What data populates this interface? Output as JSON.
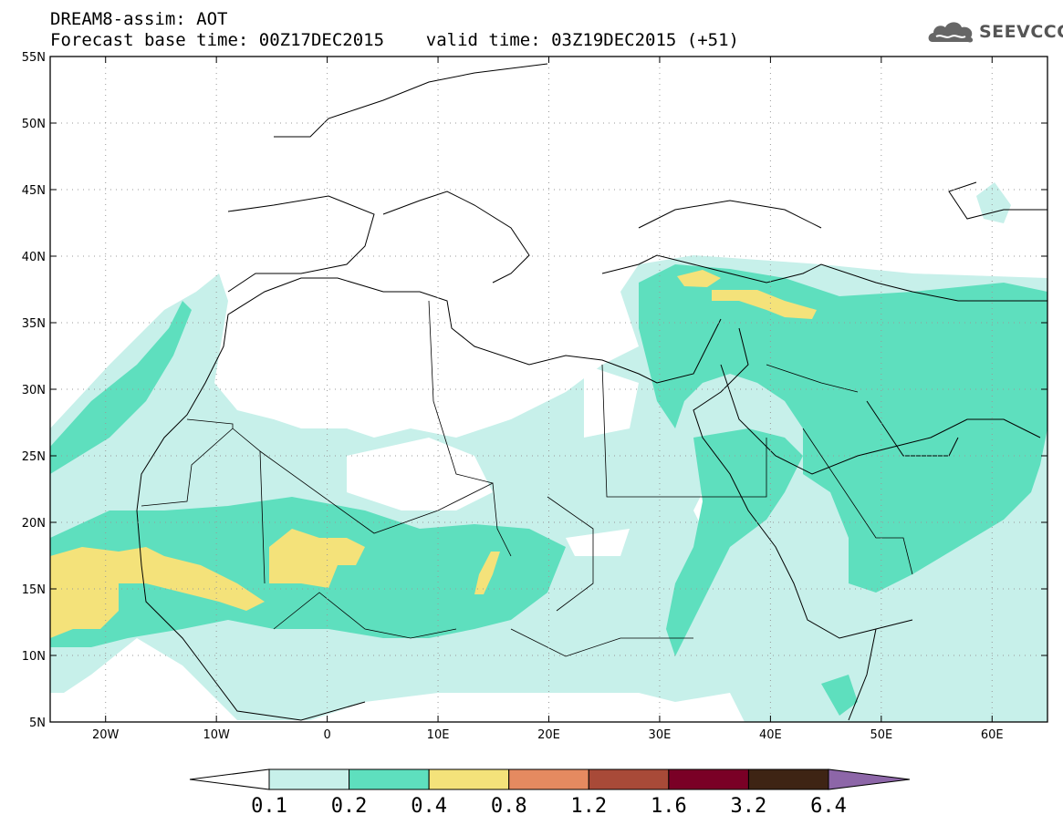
{
  "header": {
    "title_line1": "DREAM8-assim: AOT",
    "title_line2": "Forecast base time: 00Z17DEC2015    valid time: 03Z19DEC2015 (+51)",
    "logo_text": "SEEVCCC",
    "logo_icon": "cloud-icon"
  },
  "map": {
    "lon_range": [
      -25,
      65
    ],
    "lat_range": [
      5,
      55
    ],
    "lon_ticks": [
      {
        "value": -20,
        "label": "20W"
      },
      {
        "value": -10,
        "label": "10W"
      },
      {
        "value": 0,
        "label": "0"
      },
      {
        "value": 10,
        "label": "10E"
      },
      {
        "value": 20,
        "label": "20E"
      },
      {
        "value": 30,
        "label": "30E"
      },
      {
        "value": 40,
        "label": "40E"
      },
      {
        "value": 50,
        "label": "50E"
      },
      {
        "value": 60,
        "label": "60E"
      }
    ],
    "lat_ticks": [
      {
        "value": 55,
        "label": "55N"
      },
      {
        "value": 50,
        "label": "50N"
      },
      {
        "value": 45,
        "label": "45N"
      },
      {
        "value": 40,
        "label": "40N"
      },
      {
        "value": 35,
        "label": "35N"
      },
      {
        "value": 30,
        "label": "30N"
      },
      {
        "value": 25,
        "label": "25N"
      },
      {
        "value": 20,
        "label": "20N"
      },
      {
        "value": 15,
        "label": "15N"
      },
      {
        "value": 10,
        "label": "10N"
      },
      {
        "value": 5,
        "label": "5N"
      }
    ],
    "gridlines": true
  },
  "colorbar": {
    "levels": [
      "0.1",
      "0.2",
      "0.4",
      "0.8",
      "1.2",
      "1.6",
      "3.2",
      "6.4"
    ],
    "colors": [
      "#ffffff",
      "#c7f0ea",
      "#5edfbe",
      "#f4e27a",
      "#e58a60",
      "#a84a38",
      "#7a0026",
      "#3e2414",
      "#8d66a8"
    ]
  }
}
